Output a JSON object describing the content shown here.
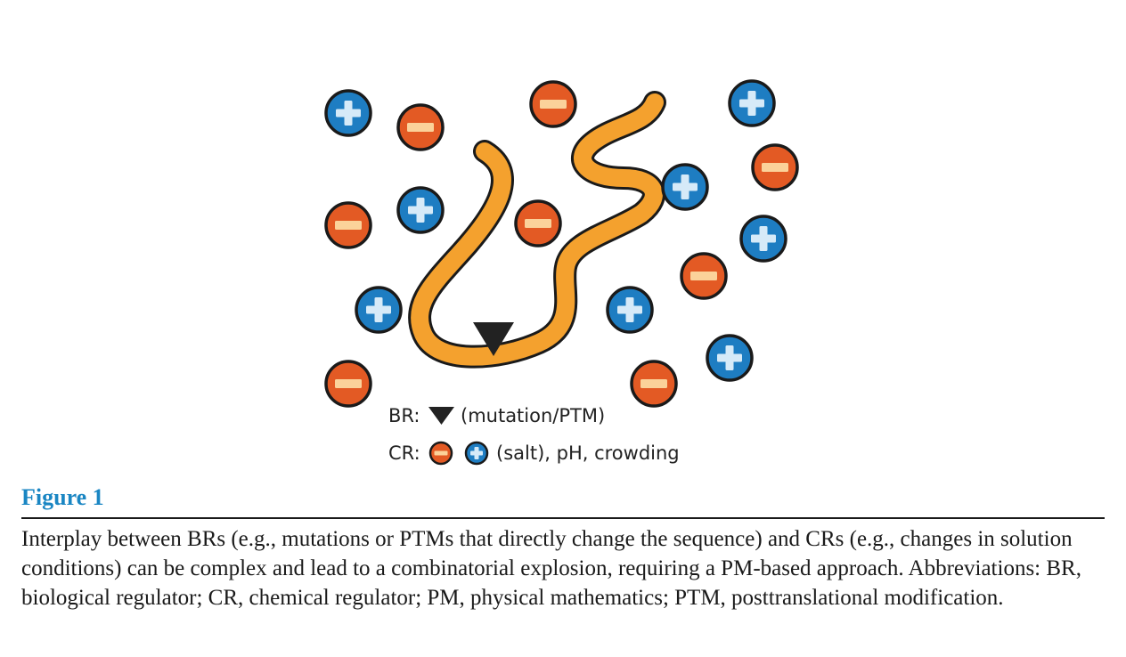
{
  "figure": {
    "legend": {
      "br_label": "BR:",
      "br_text": "(mutation/PTM)",
      "cr_label": "CR:",
      "cr_text": "(salt), pH, crowding"
    },
    "icons": {
      "positive_ion": "plus-ion-icon",
      "negative_ion": "minus-ion-icon",
      "mutation_marker": "triangle-marker-icon",
      "polymer_chain": "polymer-chain"
    },
    "colors": {
      "positive_ion": "#1e7dc2",
      "positive_sign": "#d6eaf8",
      "negative_ion": "#e35a24",
      "negative_sign": "#fbd29a",
      "chain": "#f4a12e",
      "outline": "#1a1a1a",
      "label_blue": "#1a86c3"
    }
  },
  "caption": {
    "label": "Figure 1",
    "text": "Interplay between BRs (e.g., mutations or PTMs that directly change the sequence) and CRs (e.g., changes in solution conditions) can be complex and lead to a combinatorial explosion, requiring a PM-based approach. Abbreviations: BR, biological regulator; CR, chemical regulator; PM, physical mathematics; PTM, posttranslational modification."
  }
}
